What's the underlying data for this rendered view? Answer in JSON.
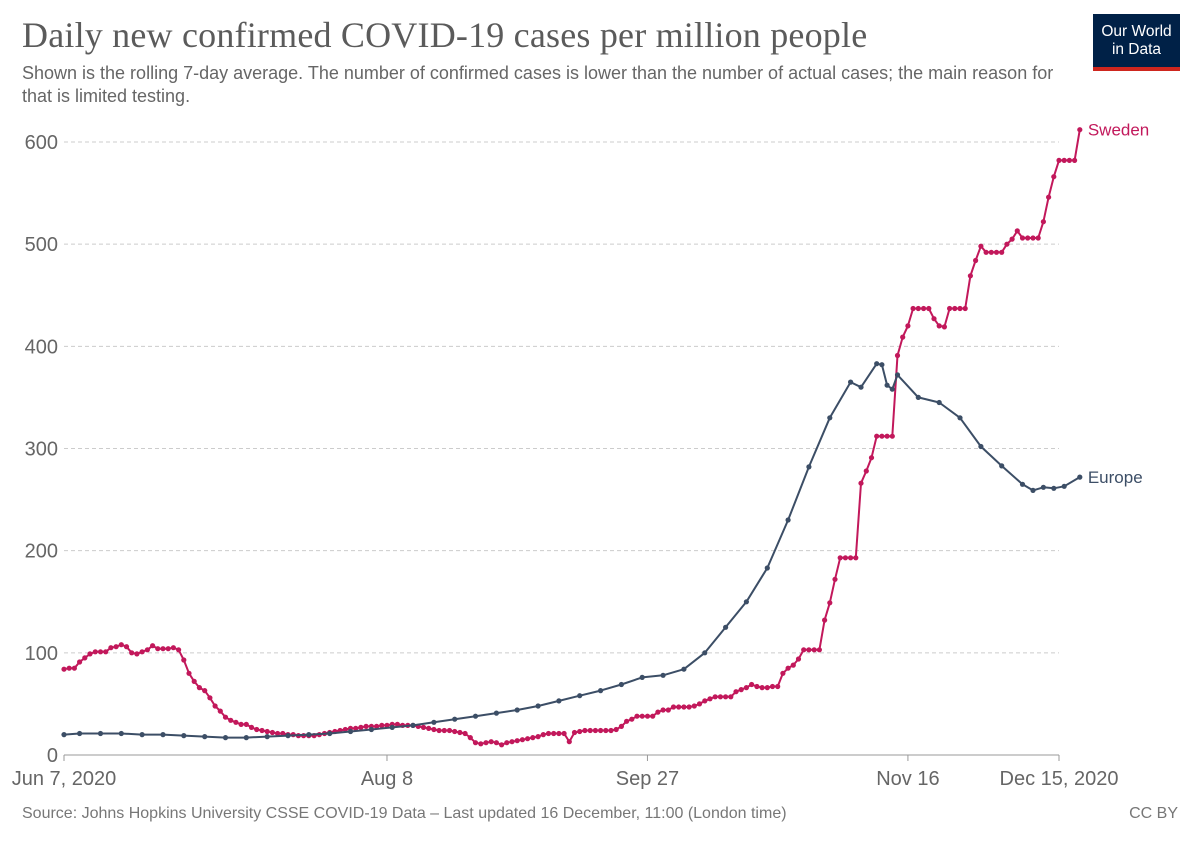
{
  "header": {
    "title": "Daily new confirmed COVID-19 cases per million people",
    "subtitle": "Shown is the rolling 7-day average. The number of confirmed cases is lower than the number of actual cases; the main reason for that is limited testing.",
    "logo_line1": "Our World",
    "logo_line2": "in Data"
  },
  "footer": {
    "source": "Source: Johns Hopkins University CSSE COVID-19 Data – Last updated 16 December, 11:00 (London time)",
    "license": "CC BY"
  },
  "colors": {
    "sweden": "#c2185b",
    "europe": "#3c4e66",
    "grid": "#cccccc",
    "logo_bg": "#002147",
    "logo_accent": "#ce261e"
  },
  "chart_data": {
    "type": "line",
    "title": "Daily new confirmed COVID-19 cases per million people",
    "x_start": "2020-06-07",
    "x_end": "2020-12-15",
    "xticks": [
      {
        "date": "2020-06-07",
        "label": "Jun 7, 2020"
      },
      {
        "date": "2020-08-08",
        "label": "Aug 8"
      },
      {
        "date": "2020-09-27",
        "label": "Sep 27"
      },
      {
        "date": "2020-11-16",
        "label": "Nov 16"
      },
      {
        "date": "2020-12-15",
        "label": "Dec 15, 2020"
      }
    ],
    "yticks": [
      0,
      100,
      200,
      300,
      400,
      500,
      600
    ],
    "ylim": [
      0,
      600
    ],
    "grid": true,
    "series": [
      {
        "name": "Sweden",
        "color": "#c2185b",
        "points": [
          [
            "2020-06-07",
            84
          ],
          [
            "2020-06-08",
            85
          ],
          [
            "2020-06-09",
            85
          ],
          [
            "2020-06-10",
            91
          ],
          [
            "2020-06-11",
            95
          ],
          [
            "2020-06-12",
            99
          ],
          [
            "2020-06-13",
            101
          ],
          [
            "2020-06-14",
            101
          ],
          [
            "2020-06-15",
            101
          ],
          [
            "2020-06-16",
            105
          ],
          [
            "2020-06-17",
            106
          ],
          [
            "2020-06-18",
            108
          ],
          [
            "2020-06-19",
            106
          ],
          [
            "2020-06-20",
            100
          ],
          [
            "2020-06-21",
            99
          ],
          [
            "2020-06-22",
            101
          ],
          [
            "2020-06-23",
            103
          ],
          [
            "2020-06-24",
            107
          ],
          [
            "2020-06-25",
            104
          ],
          [
            "2020-06-26",
            104
          ],
          [
            "2020-06-27",
            104
          ],
          [
            "2020-06-28",
            105
          ],
          [
            "2020-06-29",
            103
          ],
          [
            "2020-06-30",
            93
          ],
          [
            "2020-07-01",
            80
          ],
          [
            "2020-07-02",
            72
          ],
          [
            "2020-07-03",
            66
          ],
          [
            "2020-07-04",
            63
          ],
          [
            "2020-07-05",
            56
          ],
          [
            "2020-07-06",
            48
          ],
          [
            "2020-07-07",
            43
          ],
          [
            "2020-07-08",
            37
          ],
          [
            "2020-07-09",
            34
          ],
          [
            "2020-07-10",
            32
          ],
          [
            "2020-07-11",
            30
          ],
          [
            "2020-07-12",
            30
          ],
          [
            "2020-07-13",
            27
          ],
          [
            "2020-07-14",
            25
          ],
          [
            "2020-07-15",
            24
          ],
          [
            "2020-07-16",
            23
          ],
          [
            "2020-07-17",
            22
          ],
          [
            "2020-07-18",
            21
          ],
          [
            "2020-07-19",
            21
          ],
          [
            "2020-07-20",
            20
          ],
          [
            "2020-07-21",
            20
          ],
          [
            "2020-07-22",
            19
          ],
          [
            "2020-07-23",
            19
          ],
          [
            "2020-07-24",
            19
          ],
          [
            "2020-07-25",
            19
          ],
          [
            "2020-07-26",
            20
          ],
          [
            "2020-07-27",
            21
          ],
          [
            "2020-07-28",
            22
          ],
          [
            "2020-07-29",
            23
          ],
          [
            "2020-07-30",
            24
          ],
          [
            "2020-07-31",
            25
          ],
          [
            "2020-08-01",
            26
          ],
          [
            "2020-08-02",
            26
          ],
          [
            "2020-08-03",
            27
          ],
          [
            "2020-08-04",
            28
          ],
          [
            "2020-08-05",
            28
          ],
          [
            "2020-08-06",
            28
          ],
          [
            "2020-08-07",
            29
          ],
          [
            "2020-08-08",
            29
          ],
          [
            "2020-08-09",
            30
          ],
          [
            "2020-08-10",
            30
          ],
          [
            "2020-08-11",
            29
          ],
          [
            "2020-08-12",
            29
          ],
          [
            "2020-08-13",
            29
          ],
          [
            "2020-08-14",
            28
          ],
          [
            "2020-08-15",
            27
          ],
          [
            "2020-08-16",
            26
          ],
          [
            "2020-08-17",
            25
          ],
          [
            "2020-08-18",
            24
          ],
          [
            "2020-08-19",
            24
          ],
          [
            "2020-08-20",
            24
          ],
          [
            "2020-08-21",
            23
          ],
          [
            "2020-08-22",
            22
          ],
          [
            "2020-08-23",
            21
          ],
          [
            "2020-08-24",
            17
          ],
          [
            "2020-08-25",
            12
          ],
          [
            "2020-08-26",
            11
          ],
          [
            "2020-08-27",
            12
          ],
          [
            "2020-08-28",
            13
          ],
          [
            "2020-08-29",
            12
          ],
          [
            "2020-08-30",
            10
          ],
          [
            "2020-08-31",
            12
          ],
          [
            "2020-09-01",
            13
          ],
          [
            "2020-09-02",
            14
          ],
          [
            "2020-09-03",
            15
          ],
          [
            "2020-09-04",
            16
          ],
          [
            "2020-09-05",
            17
          ],
          [
            "2020-09-06",
            18
          ],
          [
            "2020-09-07",
            20
          ],
          [
            "2020-09-08",
            21
          ],
          [
            "2020-09-09",
            21
          ],
          [
            "2020-09-10",
            21
          ],
          [
            "2020-09-11",
            21
          ],
          [
            "2020-09-12",
            13
          ],
          [
            "2020-09-13",
            22
          ],
          [
            "2020-09-14",
            23
          ],
          [
            "2020-09-15",
            24
          ],
          [
            "2020-09-16",
            24
          ],
          [
            "2020-09-17",
            24
          ],
          [
            "2020-09-18",
            24
          ],
          [
            "2020-09-19",
            24
          ],
          [
            "2020-09-20",
            24
          ],
          [
            "2020-09-21",
            25
          ],
          [
            "2020-09-22",
            28
          ],
          [
            "2020-09-23",
            33
          ],
          [
            "2020-09-24",
            35
          ],
          [
            "2020-09-25",
            38
          ],
          [
            "2020-09-26",
            38
          ],
          [
            "2020-09-27",
            38
          ],
          [
            "2020-09-28",
            38
          ],
          [
            "2020-09-29",
            42
          ],
          [
            "2020-09-30",
            44
          ],
          [
            "2020-10-01",
            44
          ],
          [
            "2020-10-02",
            47
          ],
          [
            "2020-10-03",
            47
          ],
          [
            "2020-10-04",
            47
          ],
          [
            "2020-10-05",
            47
          ],
          [
            "2020-10-06",
            48
          ],
          [
            "2020-10-07",
            50
          ],
          [
            "2020-10-08",
            53
          ],
          [
            "2020-10-09",
            55
          ],
          [
            "2020-10-10",
            57
          ],
          [
            "2020-10-11",
            57
          ],
          [
            "2020-10-12",
            57
          ],
          [
            "2020-10-13",
            57
          ],
          [
            "2020-10-14",
            62
          ],
          [
            "2020-10-15",
            64
          ],
          [
            "2020-10-16",
            66
          ],
          [
            "2020-10-17",
            69
          ],
          [
            "2020-10-18",
            67
          ],
          [
            "2020-10-19",
            66
          ],
          [
            "2020-10-20",
            66
          ],
          [
            "2020-10-21",
            67
          ],
          [
            "2020-10-22",
            67
          ],
          [
            "2020-10-23",
            80
          ],
          [
            "2020-10-24",
            85
          ],
          [
            "2020-10-25",
            88
          ],
          [
            "2020-10-26",
            94
          ],
          [
            "2020-10-27",
            103
          ],
          [
            "2020-10-28",
            103
          ],
          [
            "2020-10-29",
            103
          ],
          [
            "2020-10-30",
            103
          ],
          [
            "2020-10-31",
            132
          ],
          [
            "2020-11-01",
            149
          ],
          [
            "2020-11-02",
            172
          ],
          [
            "2020-11-03",
            193
          ],
          [
            "2020-11-04",
            193
          ],
          [
            "2020-11-05",
            193
          ],
          [
            "2020-11-06",
            193
          ],
          [
            "2020-11-07",
            266
          ],
          [
            "2020-11-08",
            278
          ],
          [
            "2020-11-09",
            291
          ],
          [
            "2020-11-10",
            312
          ],
          [
            "2020-11-11",
            312
          ],
          [
            "2020-11-12",
            312
          ],
          [
            "2020-11-13",
            312
          ],
          [
            "2020-11-14",
            391
          ],
          [
            "2020-11-15",
            409
          ],
          [
            "2020-11-16",
            420
          ],
          [
            "2020-11-17",
            437
          ],
          [
            "2020-11-18",
            437
          ],
          [
            "2020-11-19",
            437
          ],
          [
            "2020-11-20",
            437
          ],
          [
            "2020-11-21",
            427
          ],
          [
            "2020-11-22",
            420
          ],
          [
            "2020-11-23",
            419
          ],
          [
            "2020-11-24",
            437
          ],
          [
            "2020-11-25",
            437
          ],
          [
            "2020-11-26",
            437
          ],
          [
            "2020-11-27",
            437
          ],
          [
            "2020-11-28",
            469
          ],
          [
            "2020-11-29",
            484
          ],
          [
            "2020-11-30",
            498
          ],
          [
            "2020-12-01",
            492
          ],
          [
            "2020-12-02",
            492
          ],
          [
            "2020-12-03",
            492
          ],
          [
            "2020-12-04",
            492
          ],
          [
            "2020-12-05",
            500
          ],
          [
            "2020-12-06",
            505
          ],
          [
            "2020-12-07",
            513
          ],
          [
            "2020-12-08",
            506
          ],
          [
            "2020-12-09",
            506
          ],
          [
            "2020-12-10",
            506
          ],
          [
            "2020-12-11",
            506
          ],
          [
            "2020-12-12",
            522
          ],
          [
            "2020-12-13",
            546
          ],
          [
            "2020-12-14",
            566
          ],
          [
            "2020-12-15",
            582
          ],
          [
            "2020-12-16",
            582
          ],
          [
            "2020-12-17",
            582
          ],
          [
            "2020-12-18",
            582
          ],
          [
            "2020-12-19",
            612
          ]
        ]
      },
      {
        "name": "Europe",
        "color": "#3c4e66",
        "points": [
          [
            "2020-06-07",
            20
          ],
          [
            "2020-06-10",
            21
          ],
          [
            "2020-06-14",
            21
          ],
          [
            "2020-06-18",
            21
          ],
          [
            "2020-06-22",
            20
          ],
          [
            "2020-06-26",
            20
          ],
          [
            "2020-06-30",
            19
          ],
          [
            "2020-07-04",
            18
          ],
          [
            "2020-07-08",
            17
          ],
          [
            "2020-07-12",
            17
          ],
          [
            "2020-07-16",
            18
          ],
          [
            "2020-07-20",
            19
          ],
          [
            "2020-07-24",
            20
          ],
          [
            "2020-07-28",
            21
          ],
          [
            "2020-08-01",
            23
          ],
          [
            "2020-08-05",
            25
          ],
          [
            "2020-08-09",
            27
          ],
          [
            "2020-08-13",
            29
          ],
          [
            "2020-08-17",
            32
          ],
          [
            "2020-08-21",
            35
          ],
          [
            "2020-08-25",
            38
          ],
          [
            "2020-08-29",
            41
          ],
          [
            "2020-09-02",
            44
          ],
          [
            "2020-09-06",
            48
          ],
          [
            "2020-09-10",
            53
          ],
          [
            "2020-09-14",
            58
          ],
          [
            "2020-09-18",
            63
          ],
          [
            "2020-09-22",
            69
          ],
          [
            "2020-09-26",
            76
          ],
          [
            "2020-09-30",
            78
          ],
          [
            "2020-10-04",
            84
          ],
          [
            "2020-10-08",
            100
          ],
          [
            "2020-10-12",
            125
          ],
          [
            "2020-10-16",
            150
          ],
          [
            "2020-10-20",
            183
          ],
          [
            "2020-10-24",
            230
          ],
          [
            "2020-10-28",
            282
          ],
          [
            "2020-11-01",
            330
          ],
          [
            "2020-11-05",
            365
          ],
          [
            "2020-11-07",
            360
          ],
          [
            "2020-11-10",
            383
          ],
          [
            "2020-11-11",
            382
          ],
          [
            "2020-11-12",
            362
          ],
          [
            "2020-11-13",
            358
          ],
          [
            "2020-11-14",
            372
          ],
          [
            "2020-11-18",
            350
          ],
          [
            "2020-11-22",
            345
          ],
          [
            "2020-11-26",
            330
          ],
          [
            "2020-11-30",
            302
          ],
          [
            "2020-12-04",
            283
          ],
          [
            "2020-12-08",
            265
          ],
          [
            "2020-12-10",
            259
          ],
          [
            "2020-12-12",
            262
          ],
          [
            "2020-12-14",
            261
          ],
          [
            "2020-12-16",
            263
          ],
          [
            "2020-12-19",
            272
          ]
        ]
      }
    ]
  }
}
